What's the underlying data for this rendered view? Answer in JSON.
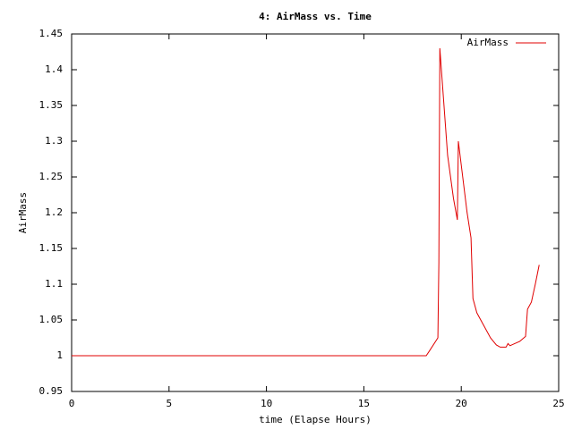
{
  "chart_data": {
    "type": "line",
    "title": "4: AirMass vs. Time",
    "x_label": "time (Elapse Hours)",
    "y_label": "AirMass",
    "x": [
      0,
      18.2,
      18.35,
      18.8,
      18.85,
      18.9,
      19.3,
      19.6,
      19.8,
      19.85,
      20.3,
      20.5,
      20.6,
      20.8,
      21.2,
      21.5,
      21.8,
      22.0,
      22.3,
      22.4,
      22.5,
      23.0,
      23.3,
      23.4,
      23.6,
      23.8,
      24.0
    ],
    "series": [
      {
        "name": "AirMass",
        "color": "#e00000",
        "values": [
          1,
          1,
          1.006,
          1.025,
          1.13,
          1.43,
          1.28,
          1.22,
          1.19,
          1.3,
          1.2,
          1.165,
          1.08,
          1.06,
          1.04,
          1.025,
          1.015,
          1.012,
          1.012,
          1.017,
          1.014,
          1.02,
          1.027,
          1.065,
          1.075,
          1.1,
          1.127
        ]
      }
    ],
    "xlim": [
      0,
      25
    ],
    "xticks": [
      0,
      5,
      10,
      15,
      20,
      25
    ],
    "ylim": [
      0.95,
      1.45
    ],
    "yticks": [
      0.95,
      1,
      1.05,
      1.1,
      1.15,
      1.2,
      1.25,
      1.3,
      1.35,
      1.4,
      1.45
    ],
    "grid": false,
    "legend": "top-right"
  }
}
